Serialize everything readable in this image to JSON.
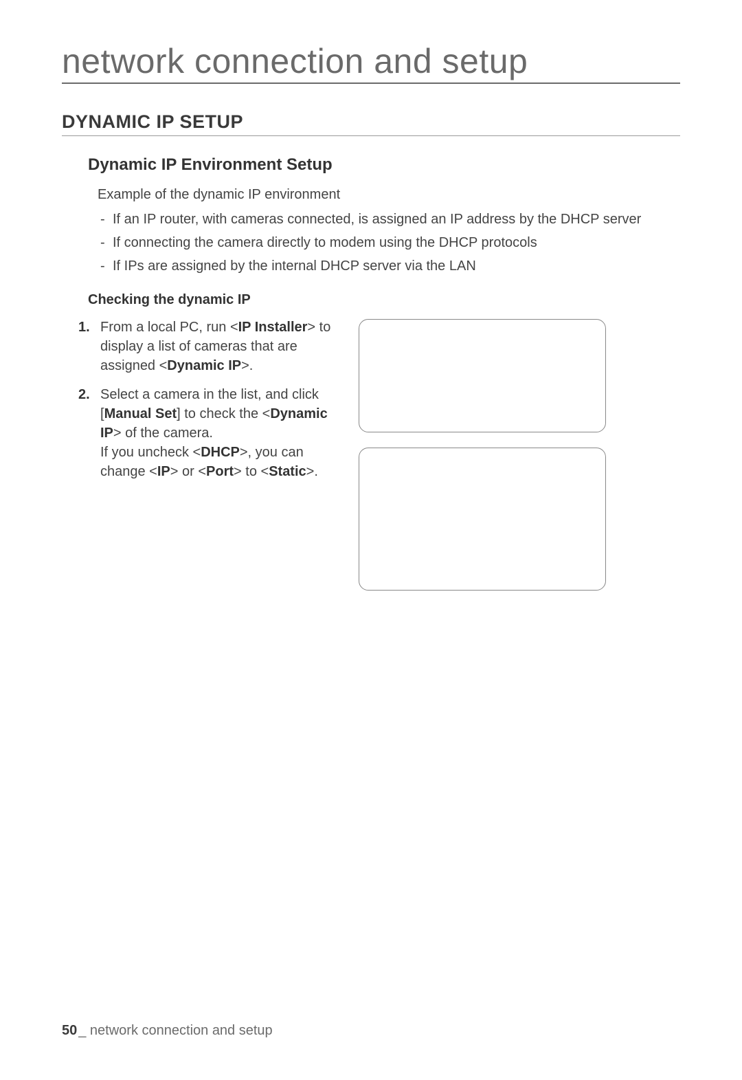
{
  "chapter_title": "network connection and setup",
  "section_title": "DYNAMIC IP SETUP",
  "subsection_title": "Dynamic IP Environment Setup",
  "intro_text": "Example of the dynamic IP environment",
  "dash_items": [
    "If an IP router, with cameras connected, is assigned an IP address by the DHCP server",
    "If connecting the camera directly to modem using the DHCP protocols",
    "If IPs are assigned by the internal DHCP server via the LAN"
  ],
  "sub_heading": "Checking the dynamic IP",
  "steps": [
    {
      "pre1": "From a local PC, run <",
      "b1": "IP Installer",
      "mid1": "> to display a list of cameras that are assigned <",
      "b2": "Dynamic IP",
      "post1": ">."
    },
    {
      "pre1": "Select a camera in the list, and click [",
      "b1": "Manual Set",
      "mid1": "] to check the <",
      "b2": "Dynamic IP",
      "mid2": "> of the camera.",
      "line2_pre": "If you uncheck <",
      "line2_b1": "DHCP",
      "line2_mid": ">, you can change <",
      "line2_b2": "IP",
      "line2_mid2": "> or <",
      "line2_b3": "Port",
      "line2_mid3": "> to <",
      "line2_b4": "Static",
      "line2_post": ">."
    }
  ],
  "footer": {
    "page_number": "50",
    "underscore": "_",
    "label": " network connection and setup"
  }
}
